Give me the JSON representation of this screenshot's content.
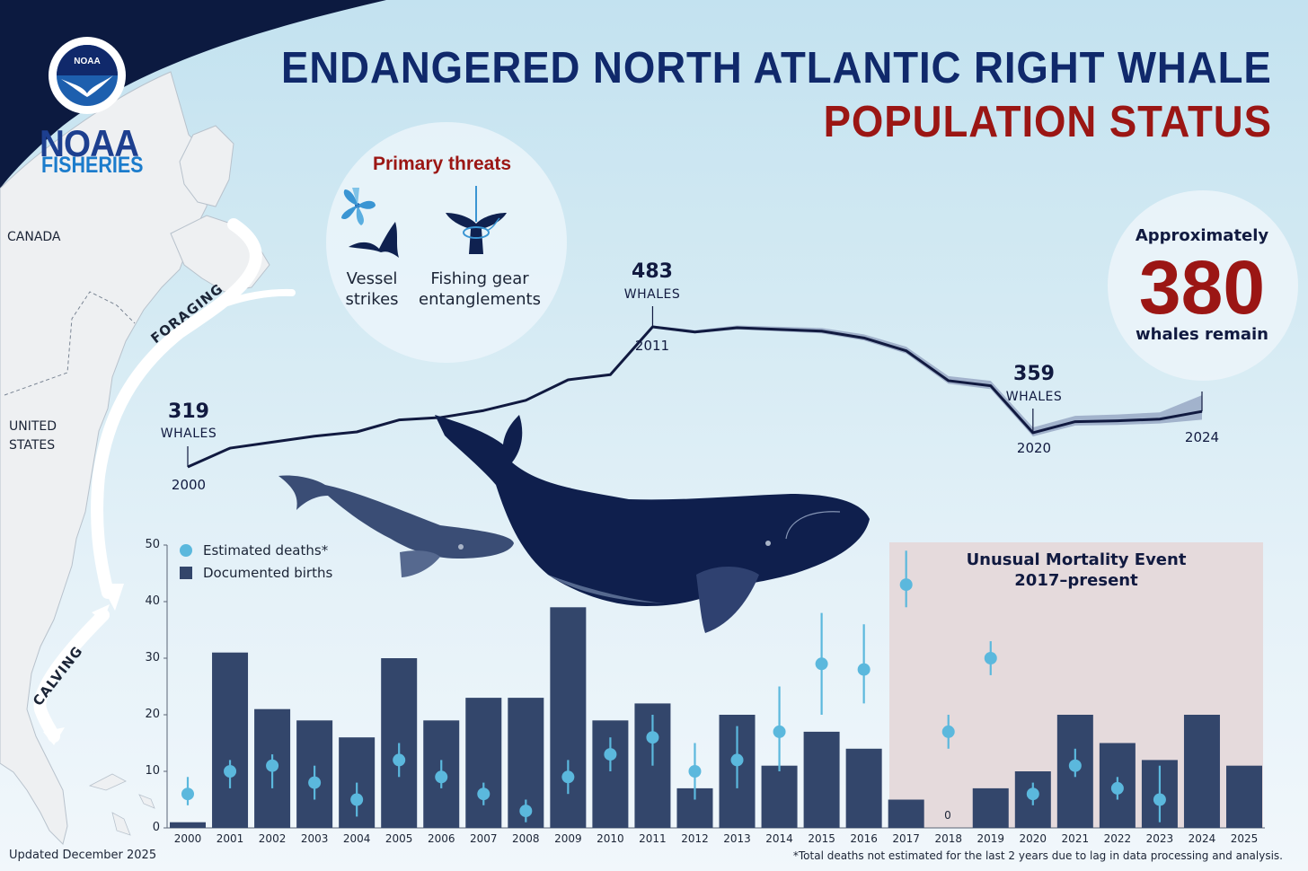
{
  "header": {
    "title_line1": "ENDANGERED NORTH ATLANTIC RIGHT WHALE",
    "title_line2": "POPULATION STATUS",
    "logo_word": "NOAA",
    "logo_sub": "FISHERIES",
    "logo_seal_text": "NOAA"
  },
  "map": {
    "labels": {
      "canada": "CANADA",
      "us_line1": "UNITED",
      "us_line2": "STATES"
    },
    "routes": {
      "foraging": "FORAGING",
      "calving": "CALVING"
    }
  },
  "threats": {
    "title": "Primary threats",
    "items": [
      {
        "icon": "propeller-whale-tail-icon",
        "line1": "Vessel",
        "line2": "strikes"
      },
      {
        "icon": "entangled-whale-tail-icon",
        "line1": "Fishing gear",
        "line2": "entanglements"
      }
    ]
  },
  "callout": {
    "prefix": "Approximately",
    "number": "380",
    "suffix": "whales remain"
  },
  "population_labels": [
    {
      "number": "319",
      "unit": "WHALES",
      "year": "2000"
    },
    {
      "number": "483",
      "unit": "WHALES",
      "year": "2011"
    },
    {
      "number": "359",
      "unit": "WHALES",
      "year": "2020"
    },
    {
      "number": "",
      "unit": "",
      "year": "2024"
    }
  ],
  "bar_chart": {
    "legend": {
      "deaths": "Estimated deaths*",
      "births": "Documented births"
    },
    "yticks": [
      "0",
      "10",
      "20",
      "30",
      "40",
      "50"
    ],
    "ume_title_line1": "Unusual Mortality Event",
    "ume_title_line2": "2017–present",
    "zero_label": "0"
  },
  "footer": {
    "updated": "Updated December 2025",
    "footnote": "*Total deaths not estimated for the last 2 years due to lag in data processing and analysis."
  },
  "colors": {
    "navy_title": "#10296b",
    "red_accent": "#9b1614",
    "bar_navy": "#33466b",
    "death_dot": "#5bb8dd",
    "line_dark": "#111a40",
    "ume_bg": "#e5dadc"
  },
  "chart_data": [
    {
      "type": "line",
      "title": "North Atlantic right whale population estimate",
      "x": [
        2000,
        2001,
        2002,
        2003,
        2004,
        2005,
        2006,
        2007,
        2008,
        2009,
        2010,
        2011,
        2012,
        2013,
        2014,
        2015,
        2016,
        2017,
        2018,
        2019,
        2020,
        2021,
        2022,
        2023,
        2024
      ],
      "values": [
        319,
        341,
        348,
        355,
        360,
        374,
        377,
        385,
        397,
        421,
        427,
        483,
        477,
        482,
        480,
        478,
        470,
        455,
        420,
        414,
        359,
        372,
        373,
        375,
        384
      ],
      "annotations": [
        {
          "x": 2000,
          "label": "319 WHALES"
        },
        {
          "x": 2011,
          "label": "483 WHALES"
        },
        {
          "x": 2020,
          "label": "359 WHALES"
        },
        {
          "x": 2024,
          "label": "2024"
        }
      ],
      "uncertainty_band": true,
      "xlabel": "",
      "ylabel": ""
    },
    {
      "type": "bar",
      "title": "Documented births and estimated deaths",
      "categories": [
        "2000",
        "2001",
        "2002",
        "2003",
        "2004",
        "2005",
        "2006",
        "2007",
        "2008",
        "2009",
        "2010",
        "2011",
        "2012",
        "2013",
        "2014",
        "2015",
        "2016",
        "2017",
        "2018",
        "2019",
        "2020",
        "2021",
        "2022",
        "2023",
        "2024",
        "2025"
      ],
      "series": [
        {
          "name": "Documented births",
          "kind": "bar",
          "values": [
            1,
            31,
            21,
            19,
            16,
            30,
            19,
            23,
            23,
            39,
            19,
            22,
            7,
            20,
            11,
            17,
            14,
            5,
            0,
            7,
            10,
            20,
            15,
            12,
            20,
            11
          ]
        },
        {
          "name": "Estimated deaths*",
          "kind": "point-with-error",
          "values": [
            6,
            10,
            11,
            8,
            5,
            12,
            9,
            6,
            3,
            9,
            13,
            16,
            10,
            12,
            17,
            29,
            28,
            43,
            17,
            30,
            6,
            11,
            7,
            5,
            null,
            null
          ],
          "lower": [
            4,
            7,
            7,
            5,
            2,
            9,
            7,
            4,
            1,
            6,
            10,
            11,
            5,
            7,
            10,
            20,
            22,
            39,
            14,
            27,
            4,
            9,
            5,
            1,
            null,
            null
          ],
          "upper": [
            9,
            12,
            13,
            11,
            8,
            15,
            12,
            8,
            5,
            12,
            16,
            20,
            15,
            18,
            25,
            38,
            36,
            49,
            20,
            33,
            8,
            14,
            9,
            11,
            null,
            null
          ]
        }
      ],
      "ylim": [
        0,
        50
      ],
      "yticks": [
        0,
        10,
        20,
        30,
        40,
        50
      ],
      "shaded_region": {
        "from": "2017",
        "to": "2025",
        "label": "Unusual Mortality Event 2017–present"
      },
      "legend_position": "top-left",
      "xlabel": "",
      "ylabel": ""
    }
  ]
}
